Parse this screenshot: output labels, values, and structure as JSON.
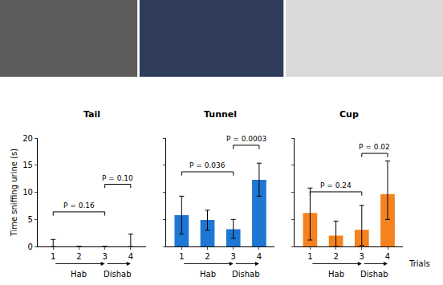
{
  "chart_data": [
    {
      "type": "bar",
      "title": "Tail",
      "y_label": "Time sniffing urine (s)",
      "x": [
        1,
        2,
        3,
        4
      ],
      "values": [
        0,
        0,
        0,
        0
      ],
      "error_plus": [
        1.3,
        0,
        0,
        2.3
      ],
      "error_minus": [
        0,
        0,
        0,
        0
      ],
      "xlim": [
        0.4,
        4.6
      ],
      "xticks": [
        1,
        2,
        3,
        4
      ],
      "ylim": [
        0,
        20
      ],
      "yticks": [
        0,
        5,
        10,
        15,
        20
      ],
      "grid": false,
      "tick_labels": true,
      "comparisons": [
        {
          "from": 1,
          "to": 3,
          "y": 6.4,
          "label": "P = 0.16"
        },
        {
          "from": 3,
          "to": 4,
          "y": 11.5,
          "label": "P = 0.10"
        }
      ],
      "phases": [
        {
          "label": "Hab",
          "from": 1,
          "to": 3
        },
        {
          "label": "Dishab",
          "from": 3,
          "to": 4
        }
      ]
    },
    {
      "type": "bar",
      "title": "Tunnel",
      "color": "#1f77d4",
      "x": [
        1,
        2,
        3,
        4
      ],
      "values": [
        5.8,
        4.9,
        3.2,
        12.3
      ],
      "error_plus": [
        3.5,
        1.8,
        1.8,
        3.1
      ],
      "error_minus": [
        3.5,
        1.9,
        1.7,
        3.0
      ],
      "xlim": [
        0.4,
        4.6
      ],
      "xticks": [
        1,
        2,
        3,
        4
      ],
      "ylim": [
        0,
        20
      ],
      "yticks": [
        0,
        5,
        10,
        15,
        20
      ],
      "grid": false,
      "tick_labels": "x",
      "comparisons": [
        {
          "from": 1,
          "to": 3,
          "y": 13.8,
          "label": "P = 0.036"
        },
        {
          "from": 3,
          "to": 4,
          "y": 18.7,
          "label": "P = 0.0003"
        }
      ],
      "phases": [
        {
          "label": "Hab",
          "from": 1,
          "to": 3
        },
        {
          "label": "Dishab",
          "from": 3,
          "to": 4
        }
      ]
    },
    {
      "type": "bar",
      "title": "Cup",
      "color": "#f5821f",
      "x_label": "Trials",
      "x": [
        1,
        2,
        3,
        4
      ],
      "values": [
        6.2,
        2.0,
        3.1,
        9.7
      ],
      "error_plus": [
        4.6,
        2.7,
        4.5,
        6.1
      ],
      "error_minus": [
        5.0,
        2.0,
        2.9,
        4.7
      ],
      "xlim": [
        0.4,
        4.6
      ],
      "xticks": [
        1,
        2,
        3,
        4
      ],
      "ylim": [
        0,
        20
      ],
      "yticks": [
        0,
        5,
        10,
        15,
        20
      ],
      "grid": false,
      "tick_labels": "x",
      "comparisons": [
        {
          "from": 1,
          "to": 3,
          "y": 10.1,
          "label": "P = 0.24"
        },
        {
          "from": 3,
          "to": 4,
          "y": 17.2,
          "label": "P = 0.02"
        }
      ],
      "phases": [
        {
          "label": "Hab",
          "from": 1,
          "to": 3
        },
        {
          "label": "Dishab",
          "from": 3,
          "to": 4
        }
      ]
    }
  ]
}
